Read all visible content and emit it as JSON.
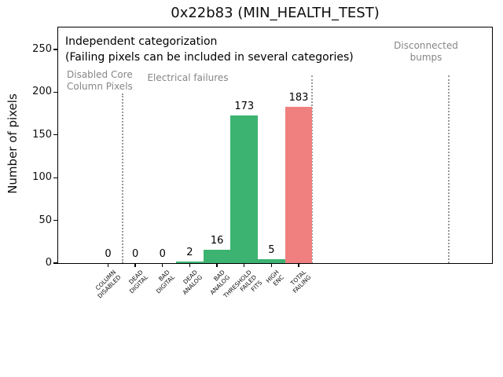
{
  "chart_data": {
    "type": "bar",
    "title": "0x22b83 (MIN_HEALTH_TEST)",
    "ylabel": "Number of pixels",
    "xlabel": "",
    "categories": [
      [
        "COLUMN",
        "DISABLED"
      ],
      [
        "DEAD",
        "DIGITAL"
      ],
      [
        "BAD",
        "DIGITAL"
      ],
      [
        "DEAD",
        "ANALOG"
      ],
      [
        "BAD",
        "ANALOG"
      ],
      [
        "THRESHOLD",
        "FAILED",
        "FITS"
      ],
      [
        "HIGH",
        "ENC"
      ],
      [
        "TOTAL",
        "FAILING"
      ]
    ],
    "values": [
      0,
      0,
      0,
      2,
      16,
      173,
      5,
      183
    ],
    "value_labels": [
      "0",
      "0",
      "0",
      "2",
      "16",
      "173",
      "5",
      "183"
    ],
    "bar_colors": [
      "#3cb371",
      "#3cb371",
      "#3cb371",
      "#3cb371",
      "#3cb371",
      "#3cb371",
      "#3cb371",
      "#f08080"
    ],
    "yticks": [
      0,
      50,
      100,
      150,
      200,
      250
    ],
    "ylim": [
      0,
      277
    ],
    "grid": false,
    "legend": null,
    "annotations": {
      "line1": "Independent categorization",
      "line2": "(Failing pixels can be included in several categories)",
      "group_labels": [
        {
          "lines": [
            "Disabled Core",
            "Column Pixels"
          ]
        },
        {
          "lines": [
            "Electrical failures"
          ]
        },
        {
          "lines": [
            "Disconnected",
            "bumps"
          ]
        }
      ]
    },
    "separators_bar_units": [
      0.52,
      7.5,
      12.52
    ],
    "colors": {
      "green": "#3cb371",
      "red": "#f08080",
      "gray_label": "#868686",
      "separator": "#999999",
      "axis": "#000000"
    }
  }
}
